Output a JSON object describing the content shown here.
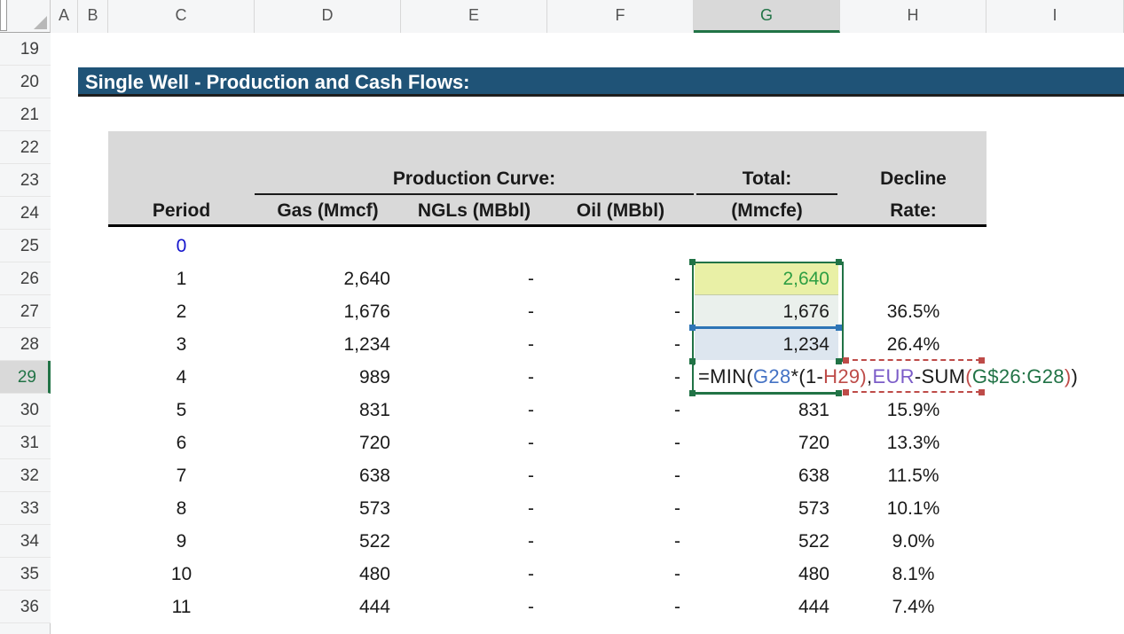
{
  "spreadsheet": {
    "title": "Single Well - Production and Cash Flows:",
    "column_headers": [
      "A",
      "B",
      "C",
      "D",
      "E",
      "F",
      "G",
      "H",
      "I"
    ],
    "selected_column": "G",
    "row_numbers": [
      19,
      20,
      21,
      22,
      23,
      24,
      25,
      26,
      27,
      28,
      29,
      30,
      31,
      32,
      33,
      34,
      35,
      36
    ],
    "selected_row": 29,
    "table": {
      "group_headers": {
        "production_curve": "Production Curve:",
        "total": "Total:",
        "decline": "Decline"
      },
      "column_headers": {
        "period": "Period",
        "gas": "Gas (Mmcf)",
        "ngls": "NGLs (MBbl)",
        "oil": "Oil (MBbl)",
        "total_unit": "(Mmcfe)",
        "rate": "Rate:"
      },
      "rows": [
        {
          "row": 25,
          "period": "0",
          "period_color": "blue"
        },
        {
          "row": 26,
          "period": "1",
          "gas": "2,640",
          "ngls": "-",
          "oil": "-",
          "total": "2,640",
          "total_color": "green"
        },
        {
          "row": 27,
          "period": "2",
          "gas": "1,676",
          "ngls": "-",
          "oil": "-",
          "total": "1,676",
          "rate": "36.5%"
        },
        {
          "row": 28,
          "period": "3",
          "gas": "1,234",
          "ngls": "-",
          "oil": "-",
          "total": "1,234",
          "rate": "26.4%"
        },
        {
          "row": 29,
          "period": "4",
          "gas": "989",
          "ngls": "-",
          "oil": "-"
        },
        {
          "row": 30,
          "period": "5",
          "gas": "831",
          "ngls": "-",
          "oil": "-",
          "total": "831",
          "rate": "15.9%"
        },
        {
          "row": 31,
          "period": "6",
          "gas": "720",
          "ngls": "-",
          "oil": "-",
          "total": "720",
          "rate": "13.3%"
        },
        {
          "row": 32,
          "period": "7",
          "gas": "638",
          "ngls": "-",
          "oil": "-",
          "total": "638",
          "rate": "11.5%"
        },
        {
          "row": 33,
          "period": "8",
          "gas": "573",
          "ngls": "-",
          "oil": "-",
          "total": "573",
          "rate": "10.1%"
        },
        {
          "row": 34,
          "period": "9",
          "gas": "522",
          "ngls": "-",
          "oil": "-",
          "total": "522",
          "rate": "9.0%"
        },
        {
          "row": 35,
          "period": "10",
          "gas": "480",
          "ngls": "-",
          "oil": "-",
          "total": "480",
          "rate": "8.1%"
        },
        {
          "row": 36,
          "period": "11",
          "gas": "444",
          "ngls": "-",
          "oil": "-",
          "total": "444",
          "rate": "7.4%"
        }
      ]
    },
    "formula": {
      "cell": "G29",
      "segments": [
        {
          "text": "=MIN(",
          "color": "black"
        },
        {
          "text": "G28",
          "color": "blue"
        },
        {
          "text": "*(1-",
          "color": "black"
        },
        {
          "text": "H29",
          "color": "red"
        },
        {
          "text": ")",
          "color": "red"
        },
        {
          "text": ",",
          "color": "black"
        },
        {
          "text": "EUR",
          "color": "purple"
        },
        {
          "text": "-SUM",
          "color": "black"
        },
        {
          "text": "(",
          "color": "red"
        },
        {
          "text": "G$26:G28",
          "color": "green"
        },
        {
          "text": ")",
          "color": "red"
        },
        {
          "text": ")",
          "color": "black"
        }
      ]
    },
    "colors": {
      "title_bar_bg": "#1F5377",
      "table_header_bg": "#D9D9D9",
      "excel_green": "#217346",
      "input_blue": "#1414CC",
      "value_green": "#2E9E43",
      "fill_g26": "#E9F0A6",
      "fill_g27": "#EAF0EC",
      "fill_g28": "#DDE6EF",
      "ref_blue": "#4472C4",
      "ref_red": "#BE4B48",
      "ref_purple": "#7B5CC8",
      "ref_green": "#217346",
      "range_blue": "#2E75B6"
    }
  }
}
